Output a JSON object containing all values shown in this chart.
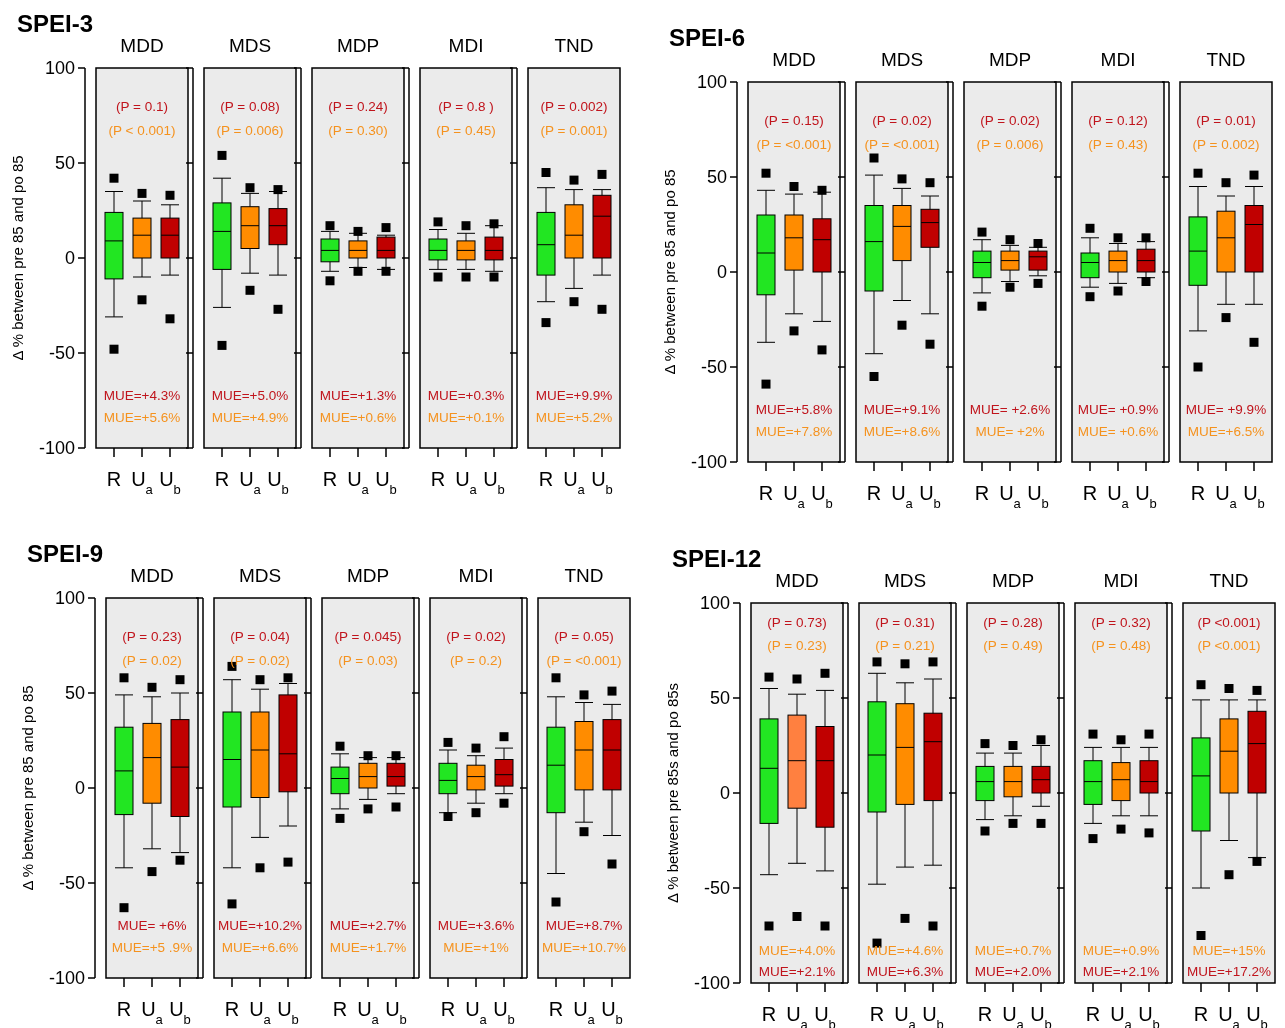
{
  "chart_data": [
    {
      "type": "box",
      "title": "MDD",
      "ylabel": "Δ % between pre 85 and po 85",
      "categories": [
        "R",
        "U$_{a}$",
        "U$_{b}$"
      ],
      "colors": [
        "#22e622",
        "#ff8c00",
        "#c00000"
      ],
      "ylim": [
        -100,
        100
      ],
      "yticks": [
        -100,
        -50,
        0,
        50,
        100
      ],
      "annotations": [
        "SPEI-3",
        "(P = 0.1)",
        "(P < 0.001)",
        "MUE=+4.3%",
        "MUE=+5.6%"
      ],
      "boxes": [
        {
          "low": -31,
          "q1": -11,
          "median": 9,
          "q3": 24,
          "high": 35,
          "outliers": [
            42,
            -48
          ]
        },
        {
          "low": -10,
          "q1": 0,
          "median": 12,
          "q3": 21,
          "high": 30,
          "outliers": [
            34,
            -22
          ]
        },
        {
          "low": -9,
          "q1": 0,
          "median": 12,
          "q3": 21,
          "high": 28,
          "outliers": [
            33,
            -32
          ]
        }
      ]
    },
    {
      "type": "box",
      "title": "MDS",
      "tick_labels": "x",
      "categories": [
        "R",
        "U$_{a}$",
        "U$_{b}$"
      ],
      "colors": [
        "#22e622",
        "#ff8c00",
        "#c00000"
      ],
      "ylim": [
        -100,
        100
      ],
      "yticks": [
        -100,
        -50,
        0,
        50,
        100
      ],
      "annotations": [
        "(P = 0.08)",
        "(P = 0.006)",
        "MUE=+5.0%",
        "MUE=+4.9%"
      ],
      "boxes": [
        {
          "low": -26,
          "q1": -6,
          "median": 14,
          "q3": 29,
          "high": 42,
          "outliers": [
            54,
            -46
          ]
        },
        {
          "low": -8,
          "q1": 5,
          "median": 17,
          "q3": 27,
          "high": 34,
          "outliers": [
            37,
            -17
          ]
        },
        {
          "low": -9,
          "q1": 7,
          "median": 17,
          "q3": 26,
          "high": 35,
          "outliers": [
            36,
            -27
          ]
        }
      ]
    },
    {
      "type": "box",
      "title": "MDP",
      "tick_labels": "x",
      "categories": [
        "R",
        "U$_{a}$",
        "U$_{b}$"
      ],
      "colors": [
        "#22e622",
        "#ff8c00",
        "#c00000"
      ],
      "ylim": [
        -100,
        100
      ],
      "yticks": [
        -100,
        -50,
        0,
        50,
        100
      ],
      "annotations": [
        "(P = 0.24)",
        "(P = 0.30)",
        "MUE=+1.3%",
        "MUE=+0.6%"
      ],
      "boxes": [
        {
          "low": -7,
          "q1": -2,
          "median": 4,
          "q3": 10,
          "high": 14,
          "outliers": [
            17,
            -12
          ]
        },
        {
          "low": -5,
          "q1": 0,
          "median": 4,
          "q3": 9,
          "high": 13,
          "outliers": [
            14,
            -7
          ]
        },
        {
          "low": -6,
          "q1": 0,
          "median": 4,
          "q3": 11,
          "high": 12,
          "outliers": [
            16,
            -7
          ]
        }
      ]
    },
    {
      "type": "box",
      "title": "MDI",
      "tick_labels": "x",
      "categories": [
        "R",
        "U$_{a}$",
        "U$_{b}$"
      ],
      "colors": [
        "#22e622",
        "#ff8c00",
        "#c00000"
      ],
      "ylim": [
        -100,
        100
      ],
      "yticks": [
        -100,
        -50,
        0,
        50,
        100
      ],
      "annotations": [
        "(P = 0.8 )",
        "(P = 0.45)",
        "MUE=+0.3%",
        "MUE=+0.1%"
      ],
      "boxes": [
        {
          "low": -6,
          "q1": -1,
          "median": 4,
          "q3": 10,
          "high": 15,
          "outliers": [
            19,
            -10
          ]
        },
        {
          "low": -6,
          "q1": -1,
          "median": 4,
          "q3": 9,
          "high": 13,
          "outliers": [
            17,
            -10
          ]
        },
        {
          "low": -7,
          "q1": -1,
          "median": 4,
          "q3": 11,
          "high": 17,
          "outliers": [
            18,
            -10
          ]
        }
      ]
    },
    {
      "type": "box",
      "title": "TND",
      "tick_labels": "x",
      "categories": [
        "R",
        "U$_{a}$",
        "U$_{b}$"
      ],
      "colors": [
        "#22e622",
        "#ff8c00",
        "#c00000"
      ],
      "ylim": [
        -100,
        100
      ],
      "yticks": [
        -100,
        -50,
        0,
        50,
        100
      ],
      "annotations": [
        "(P = 0.002)",
        "(P = 0.001)",
        "MUE=+9.9%",
        "MUE=+5.2%"
      ],
      "boxes": [
        {
          "low": -23,
          "q1": -9,
          "median": 7,
          "q3": 24,
          "high": 37,
          "outliers": [
            45,
            -34
          ]
        },
        {
          "low": -16,
          "q1": 0,
          "median": 12,
          "q3": 28,
          "high": 36,
          "outliers": [
            41,
            -23
          ]
        },
        {
          "low": -9,
          "q1": 0,
          "median": 22,
          "q3": 33,
          "high": 36,
          "outliers": [
            44,
            -27
          ]
        }
      ]
    },
    {
      "type": "box",
      "title": "MDD",
      "ylabel": "Δ % between pre 85 and po 85",
      "categories": [
        "R",
        "U$_{a}$",
        "U$_{b}$"
      ],
      "colors": [
        "#22e622",
        "#ff8c00",
        "#c00000"
      ],
      "ylim": [
        -100,
        100
      ],
      "yticks": [
        -100,
        -50,
        0,
        50,
        100
      ],
      "annotations": [
        "SPEI-6",
        "(P = 0.15)",
        "(P = <0.001)",
        "MUE=+5.8%",
        "MUE=+7.8%"
      ],
      "boxes": [
        {
          "low": -37,
          "q1": -12,
          "median": 10,
          "q3": 30,
          "high": 43,
          "outliers": [
            52,
            -59
          ]
        },
        {
          "low": -22,
          "q1": 1,
          "median": 18,
          "q3": 30,
          "high": 41,
          "outliers": [
            45,
            -31
          ]
        },
        {
          "low": -26,
          "q1": 0,
          "median": 17,
          "q3": 28,
          "high": 42,
          "outliers": [
            43,
            -41
          ]
        }
      ]
    },
    {
      "type": "box",
      "title": "MDS",
      "tick_labels": "x",
      "categories": [
        "R",
        "U$_{a}$",
        "U$_{b}$"
      ],
      "colors": [
        "#22e622",
        "#ff8c00",
        "#c00000"
      ],
      "ylim": [
        -100,
        100
      ],
      "yticks": [
        -100,
        -50,
        0,
        50,
        100
      ],
      "annotations": [
        "(P = 0.02)",
        "(P = <0.001)",
        "MUE=+9.1%",
        "MUE=+8.6%"
      ],
      "boxes": [
        {
          "low": -43,
          "q1": -10,
          "median": 16,
          "q3": 35,
          "high": 51,
          "outliers": [
            60,
            -55
          ]
        },
        {
          "low": -15,
          "q1": 6,
          "median": 24,
          "q3": 35,
          "high": 44,
          "outliers": [
            49,
            -28
          ]
        },
        {
          "low": -22,
          "q1": 13,
          "median": 26,
          "q3": 33,
          "high": 40,
          "outliers": [
            47,
            -38
          ]
        }
      ]
    },
    {
      "type": "box",
      "title": "MDP",
      "tick_labels": "x",
      "categories": [
        "R",
        "U$_{a}$",
        "U$_{b}$"
      ],
      "colors": [
        "#22e622",
        "#ff8c00",
        "#c00000"
      ],
      "ylim": [
        -100,
        100
      ],
      "yticks": [
        -100,
        -50,
        0,
        50,
        100
      ],
      "annotations": [
        "(P = 0.02)",
        "(P = 0.006)",
        "MUE= +2.6%",
        "MUE= +2%"
      ],
      "boxes": [
        {
          "low": -11,
          "q1": -3,
          "median": 5,
          "q3": 11,
          "high": 17,
          "outliers": [
            21,
            -18
          ]
        },
        {
          "low": -5,
          "q1": 1,
          "median": 6,
          "q3": 11,
          "high": 14,
          "outliers": [
            17,
            -8
          ]
        },
        {
          "low": -2,
          "q1": 1,
          "median": 8,
          "q3": 11,
          "high": 13,
          "outliers": [
            15,
            -6
          ]
        }
      ]
    },
    {
      "type": "box",
      "title": "MDI",
      "tick_labels": "x",
      "categories": [
        "R",
        "U$_{a}$",
        "U$_{b}$"
      ],
      "colors": [
        "#22e622",
        "#ff8c00",
        "#c00000"
      ],
      "ylim": [
        -100,
        100
      ],
      "yticks": [
        -100,
        -50,
        0,
        50,
        100
      ],
      "annotations": [
        "(P = 0.12)",
        "(P = 0.43)",
        "MUE= +0.9%",
        "MUE= +0.6%"
      ],
      "boxes": [
        {
          "low": -8,
          "q1": -3,
          "median": 5,
          "q3": 10,
          "high": 18,
          "outliers": [
            23,
            -13
          ]
        },
        {
          "low": -6,
          "q1": 0,
          "median": 6,
          "q3": 11,
          "high": 15,
          "outliers": [
            18,
            -10
          ]
        },
        {
          "low": -3,
          "q1": 0,
          "median": 6,
          "q3": 12,
          "high": 16,
          "outliers": [
            18,
            -5
          ]
        }
      ]
    },
    {
      "type": "box",
      "title": "TND",
      "tick_labels": "x",
      "categories": [
        "R",
        "U$_{a}$",
        "U$_{b}$"
      ],
      "colors": [
        "#22e622",
        "#ff8c00",
        "#c00000"
      ],
      "ylim": [
        -100,
        100
      ],
      "yticks": [
        -100,
        -50,
        0,
        50,
        100
      ],
      "annotations": [
        "(P = 0.01)",
        "(P = 0.002)",
        "MUE= +9.9%",
        "MUE=+6.5%"
      ],
      "boxes": [
        {
          "low": -31,
          "q1": -7,
          "median": 11,
          "q3": 29,
          "high": 45,
          "outliers": [
            52,
            -50
          ]
        },
        {
          "low": -17,
          "q1": 0,
          "median": 18,
          "q3": 32,
          "high": 40,
          "outliers": [
            47,
            -24
          ]
        },
        {
          "low": -17,
          "q1": 0,
          "median": 25,
          "q3": 35,
          "high": 45,
          "outliers": [
            51,
            -37
          ]
        }
      ]
    },
    {
      "type": "box",
      "title": "MDD",
      "ylabel": "Δ % between pre 85 and po 85",
      "categories": [
        "R",
        "U$_{a}$",
        "U$_{b}$"
      ],
      "colors": [
        "#22e622",
        "#ff8c00",
        "#c00000"
      ],
      "ylim": [
        -100,
        100
      ],
      "yticks": [
        -100,
        -50,
        0,
        50,
        100
      ],
      "annotations": [
        "SPEI-9",
        "(P = 0.23)",
        "(P = 0.02)",
        "MUE= +6%",
        "MUE=+5 .9%"
      ],
      "boxes": [
        {
          "low": -42,
          "q1": -14,
          "median": 9,
          "q3": 32,
          "high": 49,
          "outliers": [
            58,
            -63
          ]
        },
        {
          "low": -32,
          "q1": -8,
          "median": 16,
          "q3": 34,
          "high": 48,
          "outliers": [
            53,
            -44
          ]
        },
        {
          "low": -34,
          "q1": -15,
          "median": 11,
          "q3": 36,
          "high": 50,
          "outliers": [
            57,
            -38
          ]
        }
      ]
    },
    {
      "type": "box",
      "title": "MDS",
      "tick_labels": "x",
      "categories": [
        "R",
        "U$_{a}$",
        "U$_{b}$"
      ],
      "colors": [
        "#22e622",
        "#ff8c00",
        "#c00000"
      ],
      "ylim": [
        -100,
        100
      ],
      "yticks": [
        -100,
        -50,
        0,
        50,
        100
      ],
      "annotations": [
        "(P = 0.04)",
        "(P = 0.02)",
        "MUE=+10.2%",
        "MUE=+6.6%"
      ],
      "boxes": [
        {
          "low": -42,
          "q1": -10,
          "median": 15,
          "q3": 40,
          "high": 57,
          "outliers": [
            64,
            -61
          ]
        },
        {
          "low": -26,
          "q1": -5,
          "median": 20,
          "q3": 40,
          "high": 52,
          "outliers": [
            57,
            -42
          ]
        },
        {
          "low": -20,
          "q1": -2,
          "median": 18,
          "q3": 49,
          "high": 55,
          "outliers": [
            58,
            -39
          ]
        }
      ]
    },
    {
      "type": "box",
      "title": "MDP",
      "tick_labels": "x",
      "categories": [
        "R",
        "U$_{a}$",
        "U$_{b}$"
      ],
      "colors": [
        "#22e622",
        "#ff8c00",
        "#c00000"
      ],
      "ylim": [
        -100,
        100
      ],
      "yticks": [
        -100,
        -50,
        0,
        50,
        100
      ],
      "annotations": [
        "(P = 0.045)",
        "(P = 0.03)",
        "MUE=+2.7%",
        "MUE=+1.7%"
      ],
      "boxes": [
        {
          "low": -11,
          "q1": -3,
          "median": 5,
          "q3": 11,
          "high": 18,
          "outliers": [
            22,
            -16
          ]
        },
        {
          "low": -6,
          "q1": 0,
          "median": 6,
          "q3": 13,
          "high": 16,
          "outliers": [
            17,
            -11
          ]
        },
        {
          "low": -3,
          "q1": 1,
          "median": 6,
          "q3": 13,
          "high": 16,
          "outliers": [
            17,
            -10
          ]
        }
      ]
    },
    {
      "type": "box",
      "title": "MDI",
      "tick_labels": "x",
      "categories": [
        "R",
        "U$_{a}$",
        "U$_{b}$"
      ],
      "colors": [
        "#22e622",
        "#ff8c00",
        "#c00000"
      ],
      "ylim": [
        -100,
        100
      ],
      "yticks": [
        -100,
        -50,
        0,
        50,
        100
      ],
      "annotations": [
        "(P = 0.02)",
        "(P = 0.2)",
        "MUE=+3.6%",
        "MUE=+1%"
      ],
      "boxes": [
        {
          "low": -13,
          "q1": -3,
          "median": 4,
          "q3": 13,
          "high": 20,
          "outliers": [
            24,
            -15
          ]
        },
        {
          "low": -8,
          "q1": -1,
          "median": 6,
          "q3": 12,
          "high": 17,
          "outliers": [
            21,
            -13
          ]
        },
        {
          "low": -3,
          "q1": 1,
          "median": 7,
          "q3": 15,
          "high": 21,
          "outliers": [
            27,
            -8
          ]
        }
      ]
    },
    {
      "type": "box",
      "title": "TND",
      "tick_labels": "x",
      "categories": [
        "R",
        "U$_{a}$",
        "U$_{b}$"
      ],
      "colors": [
        "#22e622",
        "#ff8c00",
        "#c00000"
      ],
      "ylim": [
        -100,
        100
      ],
      "yticks": [
        -100,
        -50,
        0,
        50,
        100
      ],
      "annotations": [
        "(P = 0.05)",
        "(P = <0.001)",
        "MUE=+8.7%",
        "MUE=+10.7%"
      ],
      "boxes": [
        {
          "low": -45,
          "q1": -13,
          "median": 12,
          "q3": 32,
          "high": 48,
          "outliers": [
            58,
            -60
          ]
        },
        {
          "low": -18,
          "q1": -1,
          "median": 20,
          "q3": 35,
          "high": 45,
          "outliers": [
            49,
            -23
          ]
        },
        {
          "low": -25,
          "q1": -1,
          "median": 20,
          "q3": 36,
          "high": 44,
          "outliers": [
            51,
            -40
          ]
        }
      ]
    },
    {
      "type": "box",
      "title": "MDD",
      "ylabel": "Δ % between pre 85s and po 85s",
      "categories": [
        "R",
        "U$_{a}$",
        "U$_{b}$"
      ],
      "colors": [
        "#22e622",
        "#ff8040",
        "#c00000"
      ],
      "ylim": [
        -100,
        100
      ],
      "yticks": [
        -100,
        -50,
        0,
        50,
        100
      ],
      "annotations": [
        "SPEI-12",
        "(P = 0.73)",
        "(P = 0.23)",
        "MUE=+4.0%",
        "MUE=+2.1%"
      ],
      "boxes": [
        {
          "low": -43,
          "q1": -16,
          "median": 13,
          "q3": 39,
          "high": 55,
          "outliers": [
            61,
            -70
          ]
        },
        {
          "low": -37,
          "q1": -8,
          "median": 17,
          "q3": 41,
          "high": 52,
          "outliers": [
            60,
            -65
          ]
        },
        {
          "low": -41,
          "q1": -18,
          "median": 17,
          "q3": 35,
          "high": 54,
          "outliers": [
            63,
            -70
          ]
        }
      ]
    },
    {
      "type": "box",
      "title": "MDS",
      "tick_labels": "x",
      "categories": [
        "R",
        "U$_{a}$",
        "U$_{b}$"
      ],
      "colors": [
        "#22e622",
        "#ff8c00",
        "#c00000"
      ],
      "ylim": [
        -100,
        100
      ],
      "yticks": [
        -100,
        -50,
        0,
        50,
        100
      ],
      "annotations": [
        "(P = 0.31)",
        "(P = 0.21)",
        "MUE=+4.6%",
        "MUE=+6.3%"
      ],
      "boxes": [
        {
          "low": -48,
          "q1": -10,
          "median": 20,
          "q3": 48,
          "high": 63,
          "outliers": [
            69,
            -79
          ]
        },
        {
          "low": -39,
          "q1": -6,
          "median": 24,
          "q3": 47,
          "high": 58,
          "outliers": [
            68,
            -66
          ]
        },
        {
          "low": -38,
          "q1": -4,
          "median": 27,
          "q3": 42,
          "high": 60,
          "outliers": [
            69,
            -70
          ]
        }
      ]
    },
    {
      "type": "box",
      "title": "MDP",
      "tick_labels": "x",
      "categories": [
        "R",
        "U$_{a}$",
        "U$_{b}$"
      ],
      "colors": [
        "#22e622",
        "#ff8c00",
        "#c00000"
      ],
      "ylim": [
        -100,
        100
      ],
      "yticks": [
        -100,
        -50,
        0,
        50,
        100
      ],
      "annotations": [
        "(P = 0.28)",
        "(P = 0.49)",
        "MUE=+0.7%",
        "MUE=+2.0%"
      ],
      "boxes": [
        {
          "low": -14,
          "q1": -4,
          "median": 6,
          "q3": 14,
          "high": 21,
          "outliers": [
            26,
            -20
          ]
        },
        {
          "low": -12,
          "q1": -2,
          "median": 6,
          "q3": 14,
          "high": 21,
          "outliers": [
            25,
            -16
          ]
        },
        {
          "low": -7,
          "q1": 0,
          "median": 7,
          "q3": 14,
          "high": 25,
          "outliers": [
            28,
            -16
          ]
        }
      ]
    },
    {
      "type": "box",
      "title": "MDI",
      "tick_labels": "x",
      "categories": [
        "R",
        "U$_{a}$",
        "U$_{b}$"
      ],
      "colors": [
        "#22e622",
        "#ff8c00",
        "#c00000"
      ],
      "ylim": [
        -100,
        100
      ],
      "yticks": [
        -100,
        -50,
        0,
        50,
        100
      ],
      "annotations": [
        "(P = 0.32)",
        "(P = 0.48)",
        "MUE=+0.9%",
        "MUE=+2.1%"
      ],
      "boxes": [
        {
          "low": -16,
          "q1": -6,
          "median": 6,
          "q3": 17,
          "high": 24,
          "outliers": [
            31,
            -24
          ]
        },
        {
          "low": -12,
          "q1": -4,
          "median": 7,
          "q3": 16,
          "high": 24,
          "outliers": [
            28,
            -19
          ]
        },
        {
          "low": -12,
          "q1": 0,
          "median": 6,
          "q3": 17,
          "high": 24,
          "outliers": [
            31,
            -21
          ]
        }
      ]
    },
    {
      "type": "box",
      "title": "TND",
      "tick_labels": "x",
      "categories": [
        "R",
        "U$_{a}$",
        "U$_{b}$"
      ],
      "colors": [
        "#22e622",
        "#ff8c00",
        "#c00000"
      ],
      "ylim": [
        -100,
        100
      ],
      "yticks": [
        -100,
        -50,
        0,
        50,
        100
      ],
      "annotations": [
        "(P <0.001)",
        "(P <0.001)",
        "MUE=+15%",
        "MUE=+17.2%"
      ],
      "boxes": [
        {
          "low": -50,
          "q1": -20,
          "median": 9,
          "q3": 29,
          "high": 49,
          "outliers": [
            57,
            -75
          ]
        },
        {
          "low": -25,
          "q1": 0,
          "median": 22,
          "q3": 39,
          "high": 49,
          "outliers": [
            55,
            -43
          ]
        },
        {
          "low": -34,
          "q1": 0,
          "median": 26,
          "q3": 43,
          "high": 49,
          "outliers": [
            54,
            -36
          ]
        }
      ]
    }
  ]
}
